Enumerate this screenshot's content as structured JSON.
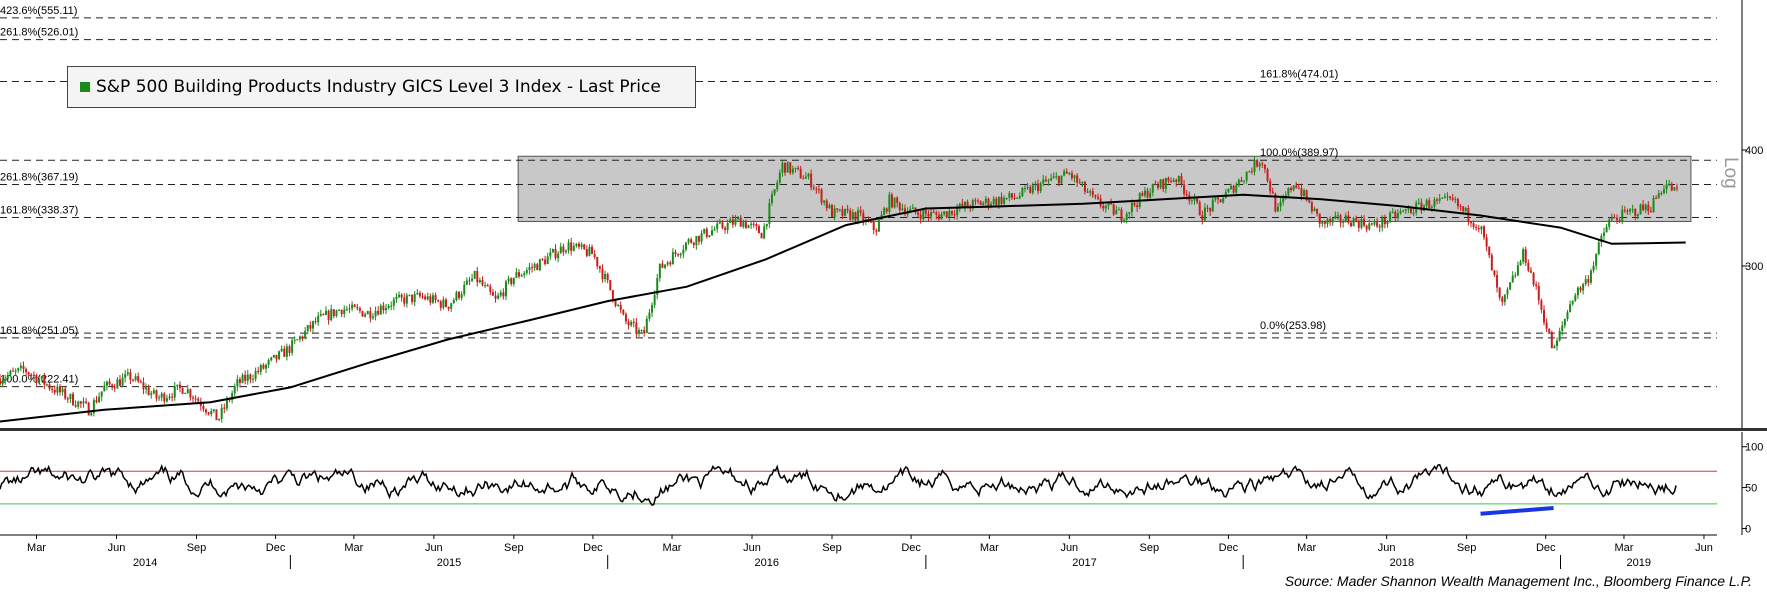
{
  "chart_data": [
    {
      "type": "candlestick",
      "title": "",
      "legend": {
        "entries": [
          "S&P 500 Building Products Industry GICS Level 3 Index - Last Price"
        ],
        "placement": "top-left",
        "color": "#1a8a1a"
      },
      "y_scale": "log",
      "y_axis_side": "right",
      "y_ticks": [
        300,
        400
      ],
      "y_axis_note": "Log",
      "x_range": [
        "2014-02-01",
        "2019-06-30"
      ],
      "x_month_labels": [
        "Mar",
        "Jun",
        "Sep",
        "Dec",
        "Mar",
        "Jun",
        "Sep",
        "Dec",
        "Mar",
        "Jun",
        "Sep",
        "Dec",
        "Mar",
        "Jun",
        "Sep",
        "Dec",
        "Mar",
        "Jun",
        "Sep",
        "Dec",
        "Mar",
        "Jun"
      ],
      "x_year_labels": [
        "2014",
        "2015",
        "2016",
        "2017",
        "2018",
        "2019"
      ],
      "fib_levels": [
        {
          "label": "423.6%(555.11)",
          "value": 555.11
        },
        {
          "label": "261.8%(526.01)",
          "value": 526.01
        },
        {
          "label": "161.8%(474.01)",
          "value": 474.01
        },
        {
          "label": "100.0%(389.97)",
          "value": 389.97
        },
        {
          "label": "261.8%(367.19)",
          "value": 367.19
        },
        {
          "label": "161.8%(338.37)",
          "value": 338.37
        },
        {
          "label": "161.8%(251.05)",
          "value": 251.05
        },
        {
          "label": "0.0%(253.98)",
          "value": 253.98
        },
        {
          "label": "100.0%(222.41)",
          "value": 222.41
        }
      ],
      "shaded_range": {
        "from_date": "2015-09-20",
        "to_date": "2019-05-31",
        "low": 338.37,
        "high": 389.97
      },
      "close_series": [
        [
          "2014-02-01",
          227
        ],
        [
          "2014-03-01",
          232
        ],
        [
          "2014-04-01",
          222
        ],
        [
          "2014-05-15",
          210
        ],
        [
          "2014-06-01",
          222
        ],
        [
          "2014-07-01",
          228
        ],
        [
          "2014-08-01",
          216
        ],
        [
          "2014-09-01",
          222
        ],
        [
          "2014-10-10",
          205
        ],
        [
          "2014-11-01",
          224
        ],
        [
          "2014-12-01",
          233
        ],
        [
          "2015-01-01",
          245
        ],
        [
          "2015-02-01",
          262
        ],
        [
          "2015-03-01",
          270
        ],
        [
          "2015-04-01",
          267
        ],
        [
          "2015-05-01",
          275
        ],
        [
          "2015-06-01",
          278
        ],
        [
          "2015-07-01",
          272
        ],
        [
          "2015-08-01",
          292
        ],
        [
          "2015-08-25",
          275
        ],
        [
          "2015-09-15",
          292
        ],
        [
          "2015-10-15",
          302
        ],
        [
          "2015-11-15",
          316
        ],
        [
          "2015-12-15",
          309
        ],
        [
          "2016-01-20",
          262
        ],
        [
          "2016-02-11",
          252
        ],
        [
          "2016-03-01",
          298
        ],
        [
          "2016-04-01",
          318
        ],
        [
          "2016-05-01",
          328
        ],
        [
          "2016-06-01",
          336
        ],
        [
          "2016-06-27",
          325
        ],
        [
          "2016-07-20",
          385
        ],
        [
          "2016-08-20",
          372
        ],
        [
          "2016-09-15",
          342
        ],
        [
          "2016-10-15",
          340
        ],
        [
          "2016-11-04",
          328
        ],
        [
          "2016-11-20",
          353
        ],
        [
          "2016-12-15",
          343
        ],
        [
          "2017-01-15",
          340
        ],
        [
          "2017-02-15",
          348
        ],
        [
          "2017-03-15",
          352
        ],
        [
          "2017-04-15",
          356
        ],
        [
          "2017-05-15",
          368
        ],
        [
          "2017-06-15",
          377
        ],
        [
          "2017-07-15",
          352
        ],
        [
          "2017-08-15",
          340
        ],
        [
          "2017-09-15",
          362
        ],
        [
          "2017-10-15",
          374
        ],
        [
          "2017-11-15",
          341
        ],
        [
          "2017-12-15",
          360
        ],
        [
          "2018-01-22",
          392
        ],
        [
          "2018-02-09",
          342
        ],
        [
          "2018-03-01",
          370
        ],
        [
          "2018-04-01",
          333
        ],
        [
          "2018-05-01",
          337
        ],
        [
          "2018-06-01",
          331
        ],
        [
          "2018-07-01",
          342
        ],
        [
          "2018-08-01",
          350
        ],
        [
          "2018-08-30",
          352
        ],
        [
          "2018-10-01",
          330
        ],
        [
          "2018-10-25",
          270
        ],
        [
          "2018-11-20",
          310
        ],
        [
          "2018-12-24",
          242
        ],
        [
          "2019-01-15",
          278
        ],
        [
          "2019-02-01",
          290
        ],
        [
          "2019-02-25",
          335
        ],
        [
          "2019-03-20",
          342
        ],
        [
          "2019-04-15",
          348
        ],
        [
          "2019-05-01",
          368
        ],
        [
          "2019-05-15",
          360
        ]
      ],
      "moving_average": [
        [
          "2014-02-01",
          204
        ],
        [
          "2014-06-01",
          210
        ],
        [
          "2014-10-01",
          214
        ],
        [
          "2015-01-01",
          222
        ],
        [
          "2015-04-01",
          236
        ],
        [
          "2015-07-01",
          250
        ],
        [
          "2015-10-01",
          262
        ],
        [
          "2016-01-01",
          275
        ],
        [
          "2016-04-01",
          285
        ],
        [
          "2016-07-01",
          305
        ],
        [
          "2016-10-01",
          332
        ],
        [
          "2017-01-01",
          346
        ],
        [
          "2017-04-01",
          348
        ],
        [
          "2017-07-01",
          350
        ],
        [
          "2017-10-01",
          354
        ],
        [
          "2018-01-01",
          358
        ],
        [
          "2018-04-01",
          354
        ],
        [
          "2018-07-01",
          348
        ],
        [
          "2018-10-01",
          340
        ],
        [
          "2019-01-01",
          330
        ],
        [
          "2019-03-01",
          317
        ],
        [
          "2019-05-25",
          318
        ]
      ]
    },
    {
      "type": "line",
      "title": "",
      "indicator": "RSI",
      "y_ticks": [
        0,
        50,
        100
      ],
      "ylim": [
        -8,
        118
      ],
      "overbought": 70,
      "oversold": 30,
      "divergence_line": {
        "from": [
          "2018-10-01",
          18
        ],
        "to": [
          "2018-12-24",
          25
        ],
        "color": "#1a35e6"
      }
    }
  ],
  "source": "Source: Mader Shannon Wealth Management Inc., Bloomberg Finance L.P."
}
